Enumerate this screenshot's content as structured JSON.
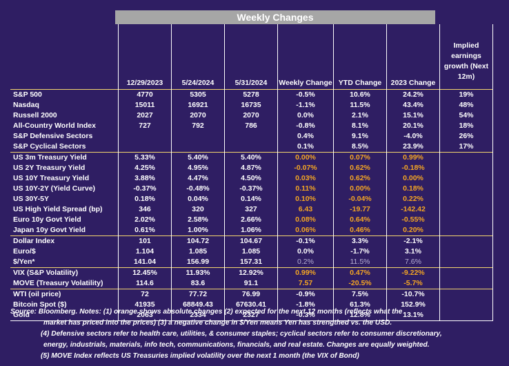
{
  "title": "Weekly Changes",
  "headers": [
    "12/29/2023",
    "5/24/2024",
    "5/31/2024",
    "Weekly Change",
    "YTD Change",
    "2023 Change",
    "Implied earnings growth (Next 12m)"
  ],
  "rows": [
    {
      "label": "S&P 500",
      "v": [
        "4770",
        "5305",
        "5278",
        "-0.5%",
        "10.6%",
        "24.2%",
        "19%"
      ],
      "o": [
        0,
        0,
        0,
        0,
        0,
        0,
        0
      ]
    },
    {
      "label": "Nasdaq",
      "v": [
        "15011",
        "16921",
        "16735",
        "-1.1%",
        "11.5%",
        "43.4%",
        "48%"
      ],
      "o": [
        0,
        0,
        0,
        0,
        0,
        0,
        0
      ]
    },
    {
      "label": "Russell 2000",
      "v": [
        "2027",
        "2070",
        "2070",
        "0.0%",
        "2.1%",
        "15.1%",
        "54%"
      ],
      "o": [
        0,
        0,
        0,
        0,
        0,
        0,
        0
      ]
    },
    {
      "label": "All-Country World Index",
      "v": [
        "727",
        "792",
        "786",
        "-0.8%",
        "8.1%",
        "20.1%",
        "18%"
      ],
      "o": [
        0,
        0,
        0,
        0,
        0,
        0,
        0
      ]
    },
    {
      "label": "S&P Defensive Sectors",
      "v": [
        "",
        "",
        "",
        "0.4%",
        "9.1%",
        "-4.0%",
        "26%"
      ],
      "o": [
        0,
        0,
        0,
        0,
        0,
        0,
        0
      ]
    },
    {
      "label": "S&P Cyclical Sectors",
      "v": [
        "",
        "",
        "",
        "0.1%",
        "8.5%",
        "23.9%",
        "17%"
      ],
      "o": [
        0,
        0,
        0,
        0,
        0,
        0,
        0
      ]
    },
    {
      "label": "US 3m Treasury Yield",
      "v": [
        "5.33%",
        "5.40%",
        "5.40%",
        "0.00%",
        "0.07%",
        "0.99%",
        ""
      ],
      "o": [
        0,
        0,
        0,
        1,
        1,
        1,
        0
      ]
    },
    {
      "label": "US 2Y Treasury Yield",
      "v": [
        "4.25%",
        "4.95%",
        "4.87%",
        "-0.07%",
        "0.62%",
        "-0.18%",
        ""
      ],
      "o": [
        0,
        0,
        0,
        1,
        1,
        1,
        0
      ]
    },
    {
      "label": "US 10Y Treasury Yield",
      "v": [
        "3.88%",
        "4.47%",
        "4.50%",
        "0.03%",
        "0.62%",
        "0.00%",
        ""
      ],
      "o": [
        0,
        0,
        0,
        1,
        1,
        1,
        0
      ]
    },
    {
      "label": "US 10Y-2Y (Yield Curve)",
      "v": [
        "-0.37%",
        "-0.48%",
        "-0.37%",
        "0.11%",
        "0.00%",
        "0.18%",
        ""
      ],
      "o": [
        0,
        0,
        0,
        1,
        1,
        1,
        0
      ]
    },
    {
      "label": "US 30Y-5Y",
      "v": [
        "0.18%",
        "0.04%",
        "0.14%",
        "0.10%",
        "-0.04%",
        "0.22%",
        ""
      ],
      "o": [
        0,
        0,
        0,
        1,
        1,
        1,
        0
      ]
    },
    {
      "label": "US High Yield Spread (bp)",
      "v": [
        "346",
        "320",
        "327",
        "6.43",
        "-19.77",
        "-142.42",
        ""
      ],
      "o": [
        0,
        0,
        0,
        1,
        1,
        1,
        0
      ]
    },
    {
      "label": "Euro 10y Govt Yield",
      "v": [
        "2.02%",
        "2.58%",
        "2.66%",
        "0.08%",
        "0.64%",
        "-0.55%",
        ""
      ],
      "o": [
        0,
        0,
        0,
        1,
        1,
        1,
        0
      ]
    },
    {
      "label": "Japan 10y Govt Yield",
      "v": [
        "0.61%",
        "1.00%",
        "1.06%",
        "0.06%",
        "0.46%",
        "0.20%",
        ""
      ],
      "o": [
        0,
        0,
        0,
        1,
        1,
        1,
        0
      ]
    },
    {
      "label": "Dollar Index",
      "v": [
        "101",
        "104.72",
        "104.67",
        "-0.1%",
        "3.3%",
        "-2.1%",
        ""
      ],
      "o": [
        0,
        0,
        0,
        0,
        0,
        0,
        0
      ]
    },
    {
      "label": "Euro/$",
      "v": [
        "1.104",
        "1.085",
        "1.085",
        "0.0%",
        "-1.7%",
        "3.1%",
        ""
      ],
      "o": [
        0,
        0,
        0,
        0,
        0,
        0,
        0
      ]
    },
    {
      "label": "$/Yen*",
      "v": [
        "141.04",
        "156.99",
        "157.31",
        "0.2%",
        "11.5%",
        "7.6%",
        ""
      ],
      "o": [
        0,
        0,
        0,
        2,
        2,
        2,
        0
      ]
    },
    {
      "label": "VIX (S&P Volatility)",
      "v": [
        "12.45%",
        "11.93%",
        "12.92%",
        "0.99%",
        "0.47%",
        "-9.22%",
        ""
      ],
      "o": [
        0,
        0,
        0,
        1,
        1,
        1,
        0
      ]
    },
    {
      "label": "MOVE (Treasury Volatility)",
      "v": [
        "114.6",
        "83.6",
        "91.1",
        "7.57",
        "-20.5%",
        "-5.7%",
        ""
      ],
      "o": [
        0,
        0,
        0,
        1,
        1,
        1,
        0
      ]
    },
    {
      "label": "WTI (oil price)",
      "v": [
        "72",
        "77.72",
        "76.99",
        "-0.9%",
        "7.5%",
        "-10.7%",
        ""
      ],
      "o": [
        0,
        0,
        0,
        0,
        0,
        0,
        0
      ]
    },
    {
      "label": "Bitcoin Spot ($)",
      "v": [
        "41935",
        "68849.43",
        "67630.41",
        "-1.8%",
        "61.3%",
        "152.9%",
        ""
      ],
      "o": [
        0,
        0,
        0,
        0,
        0,
        0,
        0
      ]
    },
    {
      "label": "Gold",
      "v": [
        "2063",
        "2334",
        "2327",
        "-0.3%",
        "12.8%",
        "13.1%",
        ""
      ],
      "o": [
        0,
        0,
        0,
        0,
        0,
        0,
        0
      ]
    }
  ],
  "notes": [
    "Source: Bloomberg. Notes: (1) orange shows absolute changes (2) expected for the next 12 months (reflects what the",
    "market has priced into the prices) (3) a negative change in $/Yen means Yen has strengthed vs. the USD.",
    "(4) Defensive sectors refer to health care, utilities, & consumer staples; cyclical sectors refer to consumer discretionary,",
    "energy, industrials, materials, info tech, communications, financials, and real estate. Changes are equally weighted.",
    "(5) MOVE Index reflects US Treasuries implied volatility over the next 1 month (the VIX of Bond)"
  ],
  "colors": {
    "background": "#2f1e63",
    "orange": "#f5a623",
    "title_bar": "#a6a6a6",
    "separator": "#f5d76e"
  }
}
